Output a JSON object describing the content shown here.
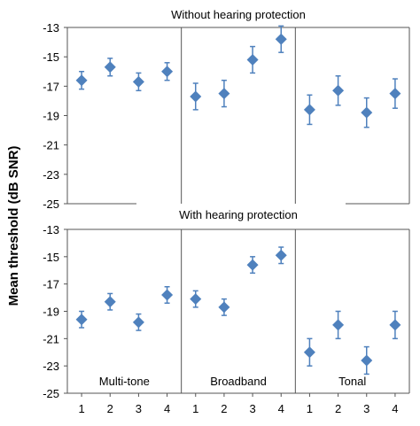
{
  "chart_data": {
    "type": "scatter",
    "ylabel": "Mean threshold (dB SNR)",
    "x_ticks": [
      "1",
      "2",
      "3",
      "4"
    ],
    "ylim": [
      -25,
      -13
    ],
    "y_ticks": [
      -13,
      -15,
      -17,
      -19,
      -21,
      -23,
      -25
    ],
    "marker_color": "#4f81bd",
    "panels": [
      {
        "title": "Without hearing protection",
        "groups": [
          {
            "label": "",
            "values": [
              -16.6,
              -15.7,
              -16.7,
              -16.0
            ],
            "errors": [
              0.6,
              0.6,
              0.6,
              0.6
            ]
          },
          {
            "label": "",
            "values": [
              -17.7,
              -17.5,
              -15.2,
              -13.8
            ],
            "errors": [
              0.9,
              0.9,
              0.9,
              0.9
            ]
          },
          {
            "label": "",
            "values": [
              -18.6,
              -17.3,
              -18.8,
              -17.5
            ],
            "errors": [
              1.0,
              1.0,
              1.0,
              1.0
            ]
          }
        ]
      },
      {
        "title": "With hearing protection",
        "groups": [
          {
            "label": "Multi-tone",
            "values": [
              -19.6,
              -18.3,
              -19.8,
              -17.8
            ],
            "errors": [
              0.6,
              0.6,
              0.6,
              0.6
            ]
          },
          {
            "label": "Broadband",
            "values": [
              -18.1,
              -18.7,
              -15.6,
              -14.9
            ],
            "errors": [
              0.6,
              0.6,
              0.6,
              0.6
            ]
          },
          {
            "label": "Tonal",
            "values": [
              -22.0,
              -20.0,
              -22.6,
              -20.0
            ],
            "errors": [
              1.0,
              1.0,
              1.0,
              1.0
            ]
          }
        ]
      }
    ]
  }
}
